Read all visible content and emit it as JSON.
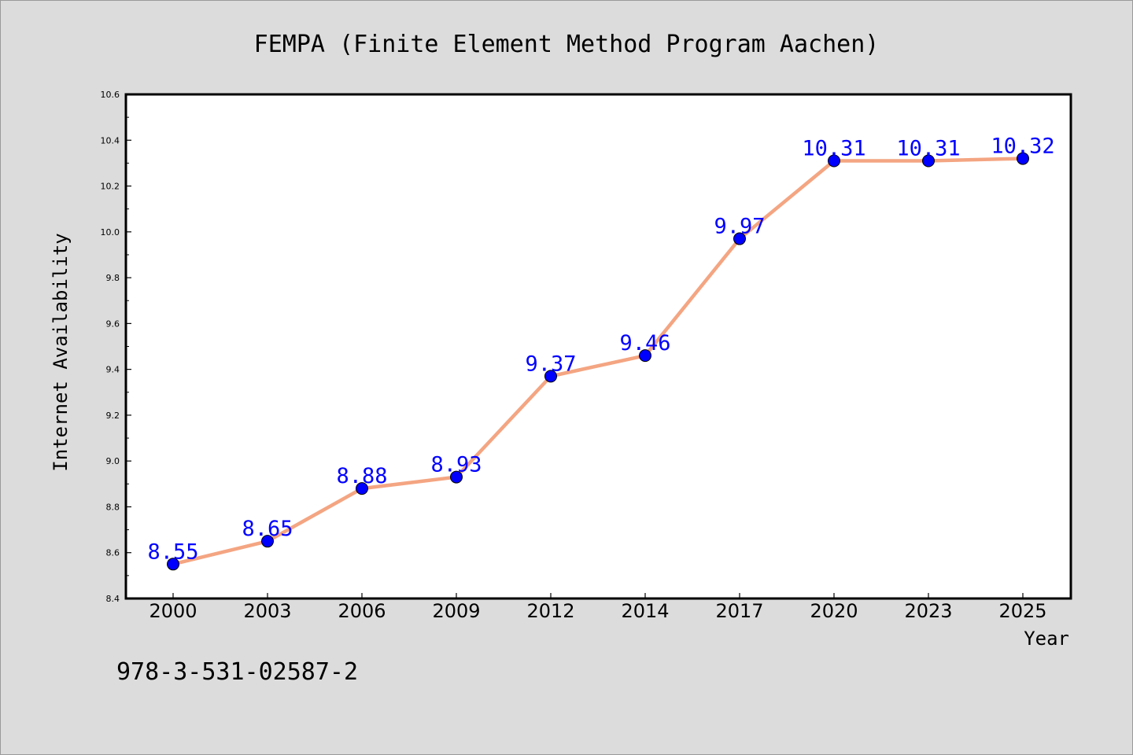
{
  "chart_data": {
    "type": "line",
    "title": "FEMPA (Finite Element Method Program Aachen)",
    "xlabel": "Year",
    "ylabel": "Internet Availability",
    "categories": [
      "2000",
      "2003",
      "2006",
      "2009",
      "2012",
      "2014",
      "2017",
      "2020",
      "2023",
      "2025"
    ],
    "series": [
      {
        "values": [
          8.55,
          8.65,
          8.88,
          8.93,
          9.37,
          9.46,
          9.97,
          10.31,
          10.31,
          10.32
        ],
        "data_labels": [
          "8.55",
          "8.65",
          "8.88",
          "8.93",
          "9.37",
          "9.46",
          "9.97",
          "10.31",
          "10.31",
          "10.32"
        ],
        "line_color": "#f4a582",
        "marker_color": "#0000ff"
      }
    ],
    "ylim": [
      8.4,
      10.6
    ],
    "yticks": [
      "8.4",
      "8.6",
      "8.8",
      "9.0",
      "9.2",
      "9.4",
      "9.6",
      "9.8",
      "10.0",
      "10.2",
      "10.4",
      "10.6"
    ],
    "grid": false,
    "legend": "none",
    "plot_background": "#ffffff",
    "figure_background": "#dcdcdc"
  },
  "footer": {
    "isbn": "978-3-531-02587-2"
  }
}
